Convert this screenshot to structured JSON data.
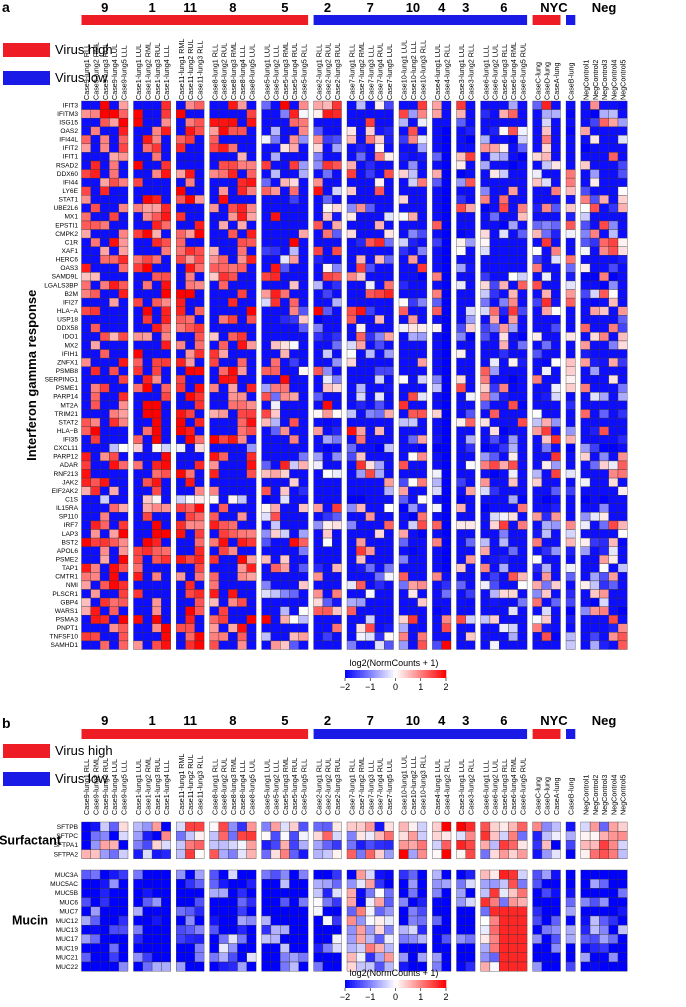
{
  "chart_data": [
    {
      "type": "heatmap",
      "panel_label": "a",
      "ylabel": "Interferon gamma response",
      "legend": {
        "high_label": "Virus high",
        "low_label": "Virus low",
        "high_color": "#ee1c25",
        "low_color": "#1a1ae6"
      },
      "group_labels": [
        "9",
        "1",
        "11",
        "8",
        "5",
        "2",
        "7",
        "10",
        "4",
        "3",
        "6",
        "NYC",
        "Neg"
      ],
      "colorbar": {
        "title": "log2(NormCounts + 1)",
        "min": -2,
        "max": 2,
        "ticks": [
          "−2",
          "−1",
          "0",
          "1",
          "2"
        ],
        "low_color": "#0000ff",
        "mid_color": "#ffffff",
        "high_color": "#ff0000"
      },
      "rows": [
        "IFIT3",
        "IFITM3",
        "ISG15",
        "OAS2",
        "IFI44L",
        "IFIT2",
        "IFIT1",
        "RSAD2",
        "DDX60",
        "IFI44",
        "LY6E",
        "STAT1",
        "UBE2L6",
        "MX1",
        "EPSTI1",
        "CMPK2",
        "C1R",
        "XAF1",
        "HERC6",
        "OAS3",
        "SAMD9L",
        "LGALS3BP",
        "B2M",
        "IFI27",
        "HLA−A",
        "USP18",
        "DDX58",
        "IDO1",
        "MX2",
        "IFIH1",
        "ZNFX1",
        "PSMB8",
        "SERPING1",
        "PSME1",
        "PARP14",
        "MT2A",
        "TRIM21",
        "STAT2",
        "HLA−B",
        "IFI35",
        "CXCL11",
        "PARP12",
        "ADAR",
        "RNF213",
        "JAK2",
        "EIF2AK2",
        "C1S",
        "IL15RA",
        "SP110",
        "IRF7",
        "LAP3",
        "BST2",
        "APOL6",
        "PSME2",
        "TAP1",
        "CMTR1",
        "NMI",
        "PLSCR1",
        "GBP4",
        "WARS1",
        "PSMA3",
        "PNPT1",
        "TNFSF10",
        "SAMHD1"
      ],
      "row_bias": [
        0.3,
        0.4,
        0.3,
        0.2,
        0.1,
        0.1,
        0.2,
        0.2,
        0.0,
        0.1,
        0.3,
        0.2,
        0.2,
        0.3,
        0.2,
        0.1,
        0.3,
        0.2,
        0.1,
        0.3,
        -0.1,
        0.2,
        0.4,
        0.3,
        0.6,
        0.0,
        0.2,
        0.0,
        0.3,
        0.2,
        0.1,
        0.2,
        0.3,
        0.3,
        0.2,
        0.4,
        0.2,
        0.2,
        0.4,
        0.3,
        -1.3,
        0.2,
        0.3,
        0.2,
        0.2,
        0.2,
        -1.2,
        0.1,
        0.1,
        0.3,
        0.3,
        0.4,
        0.2,
        0.2,
        0.3,
        0.2,
        0.2,
        0.2,
        0.1,
        0.2,
        0.5,
        0.2,
        0.1,
        0.1
      ],
      "columns": [
        {
          "group": "9",
          "samples": [
            "Case9-lung1 RLL",
            "Case9-lung2 RML",
            "Case9-lung3 RUL",
            "Case9-lung4 LUL",
            "Case9-lung5 LLL"
          ],
          "base": 1.45
        },
        {
          "group": "1",
          "samples": [
            "Case1-lung1 LUL",
            "Case1-lung2 RML",
            "Case1-lung3 RUL",
            "Case1-lung4 LLL"
          ],
          "base": 1.55
        },
        {
          "group": "11",
          "samples": [
            "Case11-lung1 RML",
            "Case11-lung2 RUL",
            "Case11-lung3 RLL"
          ],
          "base": 1.65
        },
        {
          "group": "8",
          "samples": [
            "Case8-lung1 RLL",
            "Case8-lung2 RUL",
            "Case8-lung3 RML",
            "Case8-lung4 LLL",
            "Case8-lung5 LUL"
          ],
          "base": 1.45
        },
        {
          "group": "5",
          "samples": [
            "Case5-lung1 LUL",
            "Case5-lung2 LLL",
            "Case5-lung3 RML",
            "Case5-lung4 RUL",
            "Case5-lung5 RLL"
          ],
          "base": 0.85
        },
        {
          "group": "2",
          "samples": [
            "Case2-lung1 RLL",
            "Case2-lung2 RUL",
            "Case2-lung3 RUL"
          ],
          "base": 0.7
        },
        {
          "group": "7",
          "samples": [
            "Case7-lung1 RLL",
            "Case7-lung2 RML",
            "Case7-lung3 LLL",
            "Case7-lung4 RUL",
            "Case7-lung5 LUL"
          ],
          "base": 0.6
        },
        {
          "group": "10",
          "samples": [
            "Case10-lung1 LUL",
            "Case10-lung2 LLL",
            "Case10-lung3 RLL"
          ],
          "base": 0.4
        },
        {
          "group": "4",
          "samples": [
            "Case4-lung1 LUL",
            "Case4-lung2 RLL"
          ],
          "base": 0.3
        },
        {
          "group": "3",
          "samples": [
            "Case3-lung1 LUL",
            "Case3-lung2 RLL"
          ],
          "base": 0.55
        },
        {
          "group": "6",
          "samples": [
            "Case6-lung1 LLL",
            "Case6-lung2 LUL",
            "Case6-lung3 RLL",
            "Case6-lung4 RML",
            "Case6-lung5 RUL"
          ],
          "base": 0.3
        },
        {
          "group": "NYC",
          "samples": [
            "CaseC-lung",
            "CaseD-lung",
            "CaseA-lung"
          ],
          "base": 0.5
        },
        {
          "group": "NYC",
          "samples": [
            "CaseB-lung"
          ],
          "base": 0.4
        },
        {
          "group": "Neg",
          "samples": [
            "NegControl1",
            "NegControl2",
            "NegControl3",
            "NegControl4",
            "NegControl5"
          ],
          "base": 0.3
        }
      ]
    },
    {
      "type": "heatmap",
      "panel_label": "b",
      "legend": {
        "high_label": "Virus high",
        "low_label": "Virus low",
        "high_color": "#ee1c25",
        "low_color": "#1a1ae6"
      },
      "group_labels": [
        "9",
        "1",
        "11",
        "8",
        "5",
        "2",
        "7",
        "10",
        "4",
        "3",
        "6",
        "NYC",
        "Neg"
      ],
      "colorbar": {
        "title": "log2(NormCounts + 1)",
        "min": -2,
        "max": 2,
        "ticks": [
          "−2",
          "−1",
          "0",
          "1",
          "2"
        ],
        "low_color": "#0000ff",
        "mid_color": "#ffffff",
        "high_color": "#ff0000"
      },
      "blocks": [
        {
          "label": "Surfactant",
          "rows": [
            "SFTPB",
            "SFTPC",
            "SFTPA1",
            "SFTPA2"
          ],
          "group_base": {
            "9": 0.1,
            "1": 0.2,
            "11": 0.7,
            "8": 0.9,
            "5": 0.3,
            "2": 0.5,
            "7": 0.4,
            "10": 1.6,
            "4": 1.5,
            "3": 1.6,
            "6": 0.9,
            "NYC": 0.2,
            "Neg": 0.7
          }
        },
        {
          "label": "Mucin",
          "rows": [
            "MUC3A",
            "MUC5AC",
            "MUC5B",
            "MUC6",
            "MUC7",
            "MUC12",
            "MUC13",
            "MUC17",
            "MUC19",
            "MUC21",
            "MUC22"
          ],
          "group_base": {
            "9": -1.5,
            "1": -1.4,
            "11": -1.5,
            "8": -1.0,
            "5": -1.3,
            "2": -0.8,
            "7": 0.3,
            "10": -1.0,
            "4": -1.4,
            "3": -1.1,
            "6": 0.9,
            "NYC": -1.4,
            "Neg": -1.3
          }
        }
      ]
    }
  ]
}
